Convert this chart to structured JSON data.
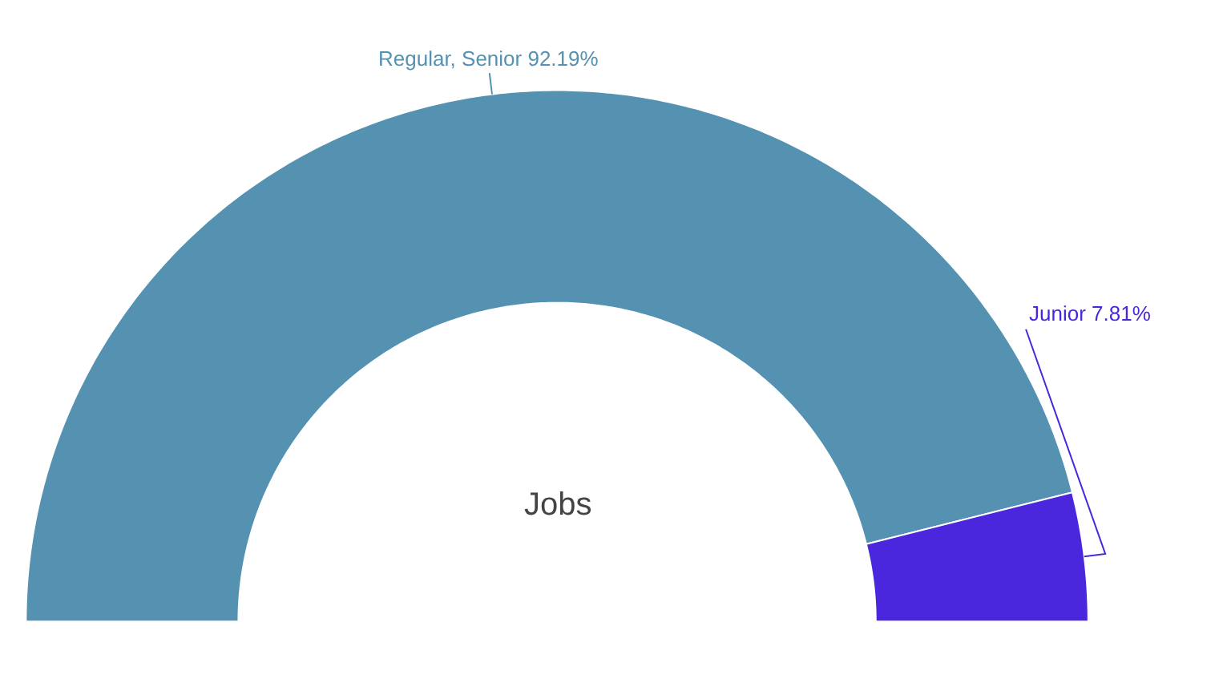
{
  "chart_data": {
    "type": "donut",
    "title": "Jobs",
    "categories": [
      "Regular, Senior",
      "Junior"
    ],
    "values": [
      92.19,
      7.81
    ],
    "value_labels": [
      "92.19%",
      "7.81%"
    ],
    "colors": [
      "#5592b2",
      "#4a27dd"
    ],
    "legend": false
  }
}
